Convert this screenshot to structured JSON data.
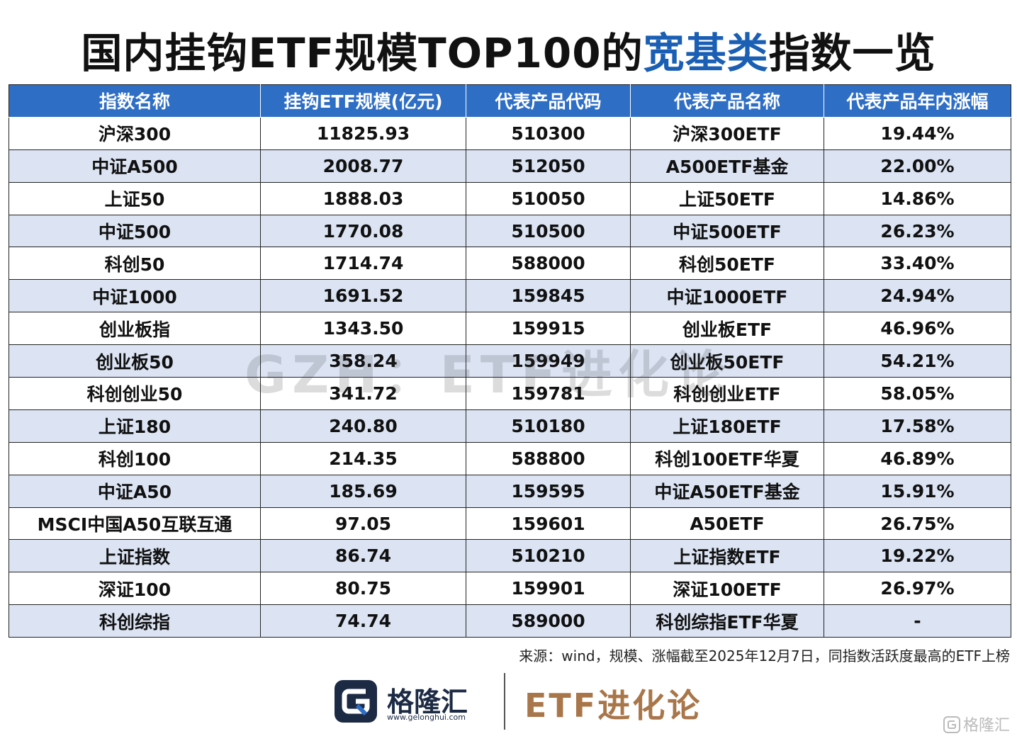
{
  "title": {
    "part1": "国内挂钩ETF规模TOP100的",
    "highlight": "宽基类",
    "part2": "指数一览"
  },
  "table": {
    "headers": [
      "指数名称",
      "挂钩ETF规模(亿元)",
      "代表产品代码",
      "代表产品名称",
      "代表产品年内涨幅"
    ],
    "rows": [
      [
        "沪深300",
        "11825.93",
        "510300",
        "沪深300ETF",
        "19.44%"
      ],
      [
        "中证A500",
        "2008.77",
        "512050",
        "A500ETF基金",
        "22.00%"
      ],
      [
        "上证50",
        "1888.03",
        "510050",
        "上证50ETF",
        "14.86%"
      ],
      [
        "中证500",
        "1770.08",
        "510500",
        "中证500ETF",
        "26.23%"
      ],
      [
        "科创50",
        "1714.74",
        "588000",
        "科创50ETF",
        "33.40%"
      ],
      [
        "中证1000",
        "1691.52",
        "159845",
        "中证1000ETF",
        "24.94%"
      ],
      [
        "创业板指",
        "1343.50",
        "159915",
        "创业板ETF",
        "46.96%"
      ],
      [
        "创业板50",
        "358.24",
        "159949",
        "创业板50ETF",
        "54.21%"
      ],
      [
        "科创创业50",
        "341.72",
        "159781",
        "科创创业ETF",
        "58.05%"
      ],
      [
        "上证180",
        "240.80",
        "510180",
        "上证180ETF",
        "17.58%"
      ],
      [
        "科创100",
        "214.35",
        "588800",
        "科创100ETF华夏",
        "46.89%"
      ],
      [
        "中证A50",
        "185.69",
        "159595",
        "中证A50ETF基金",
        "15.91%"
      ],
      [
        "MSCI中国A50互联互通",
        "97.05",
        "159601",
        "A50ETF",
        "26.75%"
      ],
      [
        "上证指数",
        "86.74",
        "510210",
        "上证指数ETF",
        "19.22%"
      ],
      [
        "深证100",
        "80.75",
        "159901",
        "深证100ETF",
        "26.97%"
      ],
      [
        "科创综指",
        "74.74",
        "589000",
        "科创综指ETF华夏",
        "-"
      ]
    ]
  },
  "watermark": "GZH：ETF进化论",
  "source_note": "来源：wind，规模、涨幅截至2025年12月7日，同指数活跃度最高的ETF上榜",
  "footer": {
    "logo_name": "格隆汇",
    "logo_url": "www.gelonghui.com",
    "logo_icon": "gelonghui-g-logo",
    "brand": "ETF进化论",
    "corner_mark": "格隆汇"
  },
  "colors": {
    "header_bg": "#2f6ec5",
    "stripe_bg": "#dce4f4",
    "title_highlight": "#1a5fb4",
    "brand": "#a9764a"
  }
}
